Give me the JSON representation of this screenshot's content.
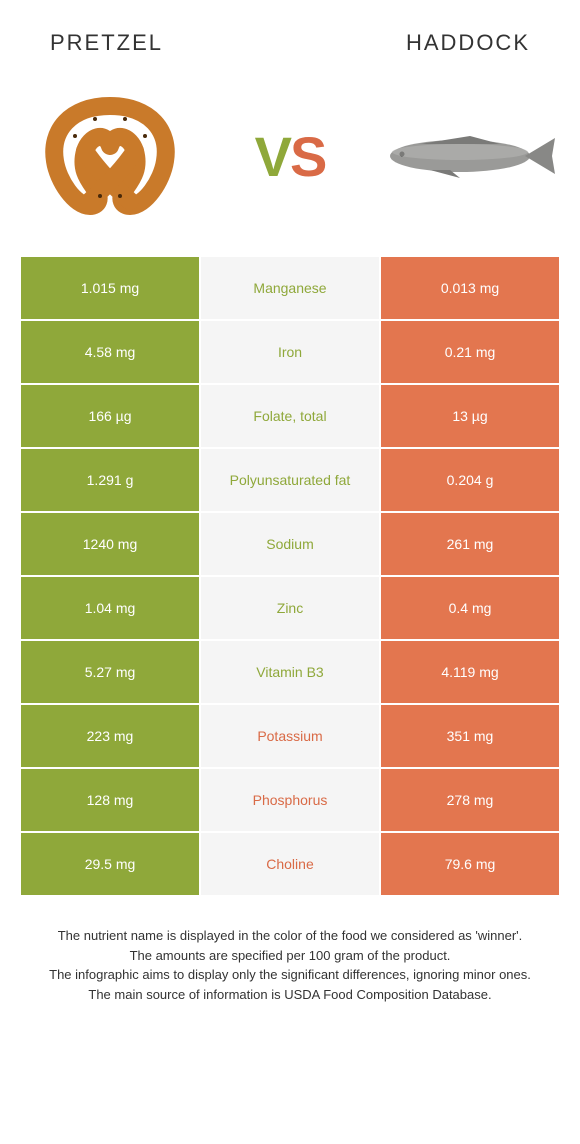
{
  "left_food": "Pretzel",
  "right_food": "Haddock",
  "vs_v": "V",
  "vs_s": "S",
  "colors": {
    "green": "#8fa83a",
    "orange": "#d96a46",
    "orange_bg": "#e3764f",
    "mid_bg": "#f5f5f5",
    "text": "#333333",
    "white": "#ffffff"
  },
  "rows": [
    {
      "left": "1.015 mg",
      "mid": "Manganese",
      "right": "0.013 mg",
      "winner": "left"
    },
    {
      "left": "4.58 mg",
      "mid": "Iron",
      "right": "0.21 mg",
      "winner": "left"
    },
    {
      "left": "166 µg",
      "mid": "Folate, total",
      "right": "13 µg",
      "winner": "left"
    },
    {
      "left": "1.291 g",
      "mid": "Polyunsaturated fat",
      "right": "0.204 g",
      "winner": "left"
    },
    {
      "left": "1240 mg",
      "mid": "Sodium",
      "right": "261 mg",
      "winner": "left"
    },
    {
      "left": "1.04 mg",
      "mid": "Zinc",
      "right": "0.4 mg",
      "winner": "left"
    },
    {
      "left": "5.27 mg",
      "mid": "Vitamin B3",
      "right": "4.119 mg",
      "winner": "left"
    },
    {
      "left": "223 mg",
      "mid": "Potassium",
      "right": "351 mg",
      "winner": "right"
    },
    {
      "left": "128 mg",
      "mid": "Phosphorus",
      "right": "278 mg",
      "winner": "right"
    },
    {
      "left": "29.5 mg",
      "mid": "Choline",
      "right": "79.6 mg",
      "winner": "right"
    }
  ],
  "footer_lines": [
    "The nutrient name is displayed in the color of the food we considered as 'winner'.",
    "The amounts are specified per 100 gram of the product.",
    "The infographic aims to display only the significant differences, ignoring minor ones.",
    "The main source of information is USDA Food Composition Database."
  ]
}
